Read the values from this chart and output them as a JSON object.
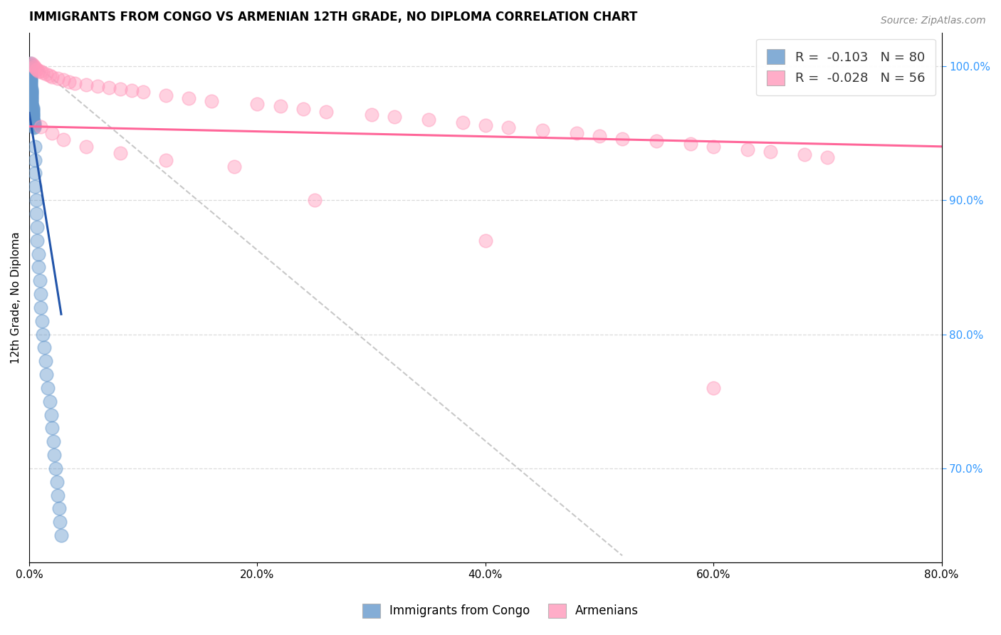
{
  "title": "IMMIGRANTS FROM CONGO VS ARMENIAN 12TH GRADE, NO DIPLOMA CORRELATION CHART",
  "source": "Source: ZipAtlas.com",
  "xlabel": "",
  "ylabel": "12th Grade, No Diploma",
  "legend_bottom": [
    "Immigrants from Congo",
    "Armenians"
  ],
  "r_congo": -0.103,
  "n_congo": 80,
  "r_armenian": -0.028,
  "n_armenian": 56,
  "xlim": [
    0.0,
    0.8
  ],
  "ylim": [
    0.63,
    1.025
  ],
  "xticklabels": [
    "0.0%",
    "20.0%",
    "40.0%",
    "60.0%",
    "80.0%"
  ],
  "xticks": [
    0.0,
    0.2,
    0.4,
    0.6,
    0.8
  ],
  "yticklabels_right": [
    "70.0%",
    "80.0%",
    "90.0%",
    "100.0%"
  ],
  "yticks_right": [
    0.7,
    0.8,
    0.9,
    1.0
  ],
  "color_congo": "#6699CC",
  "color_armenian": "#FF99BB",
  "trend_congo_color": "#2255AA",
  "trend_armenian_color": "#FF6699",
  "ref_line_color": "#BBBBBB",
  "background_color": "#FFFFFF",
  "congo_x": [
    0.001,
    0.001,
    0.001,
    0.001,
    0.001,
    0.001,
    0.001,
    0.001,
    0.001,
    0.001,
    0.001,
    0.001,
    0.001,
    0.001,
    0.001,
    0.001,
    0.001,
    0.001,
    0.001,
    0.001,
    0.002,
    0.002,
    0.002,
    0.002,
    0.002,
    0.002,
    0.002,
    0.002,
    0.002,
    0.002,
    0.002,
    0.002,
    0.002,
    0.002,
    0.003,
    0.003,
    0.003,
    0.003,
    0.003,
    0.003,
    0.003,
    0.003,
    0.003,
    0.003,
    0.003,
    0.004,
    0.004,
    0.004,
    0.004,
    0.004,
    0.005,
    0.005,
    0.005,
    0.005,
    0.006,
    0.006,
    0.007,
    0.007,
    0.008,
    0.008,
    0.009,
    0.01,
    0.01,
    0.011,
    0.012,
    0.013,
    0.014,
    0.015,
    0.016,
    0.018,
    0.019,
    0.02,
    0.021,
    0.022,
    0.023,
    0.024,
    0.025,
    0.026,
    0.027,
    0.028
  ],
  "congo_y": [
    1.002,
    1.001,
    1.0,
    0.999,
    0.999,
    0.998,
    0.997,
    0.996,
    0.995,
    0.994,
    0.993,
    0.992,
    0.991,
    0.99,
    0.989,
    0.988,
    0.987,
    0.986,
    0.985,
    0.984,
    0.983,
    0.982,
    0.981,
    0.98,
    0.979,
    0.978,
    0.977,
    0.976,
    0.975,
    0.974,
    0.973,
    0.972,
    0.971,
    0.97,
    0.969,
    0.968,
    0.967,
    0.966,
    0.965,
    0.964,
    0.963,
    0.962,
    0.961,
    0.96,
    0.959,
    0.958,
    0.957,
    0.956,
    0.955,
    0.954,
    0.94,
    0.93,
    0.92,
    0.91,
    0.9,
    0.89,
    0.88,
    0.87,
    0.86,
    0.85,
    0.84,
    0.83,
    0.82,
    0.81,
    0.8,
    0.79,
    0.78,
    0.77,
    0.76,
    0.75,
    0.74,
    0.73,
    0.72,
    0.71,
    0.7,
    0.69,
    0.68,
    0.67,
    0.66,
    0.65
  ],
  "armenian_x": [
    0.002,
    0.003,
    0.004,
    0.005,
    0.006,
    0.007,
    0.008,
    0.01,
    0.012,
    0.015,
    0.018,
    0.02,
    0.025,
    0.03,
    0.035,
    0.04,
    0.05,
    0.06,
    0.07,
    0.08,
    0.09,
    0.1,
    0.12,
    0.14,
    0.16,
    0.2,
    0.22,
    0.24,
    0.26,
    0.3,
    0.32,
    0.35,
    0.38,
    0.4,
    0.42,
    0.45,
    0.48,
    0.5,
    0.52,
    0.55,
    0.58,
    0.6,
    0.63,
    0.65,
    0.68,
    0.7,
    0.01,
    0.02,
    0.03,
    0.05,
    0.08,
    0.12,
    0.18,
    0.25,
    0.4,
    0.6
  ],
  "armenian_y": [
    1.002,
    1.001,
    1.0,
    0.999,
    0.998,
    0.997,
    0.996,
    0.996,
    0.995,
    0.994,
    0.993,
    0.992,
    0.991,
    0.99,
    0.988,
    0.987,
    0.986,
    0.985,
    0.984,
    0.983,
    0.982,
    0.981,
    0.978,
    0.976,
    0.974,
    0.972,
    0.97,
    0.968,
    0.966,
    0.964,
    0.962,
    0.96,
    0.958,
    0.956,
    0.954,
    0.952,
    0.95,
    0.948,
    0.946,
    0.944,
    0.942,
    0.94,
    0.938,
    0.936,
    0.934,
    0.932,
    0.955,
    0.95,
    0.945,
    0.94,
    0.935,
    0.93,
    0.925,
    0.9,
    0.87,
    0.76
  ]
}
